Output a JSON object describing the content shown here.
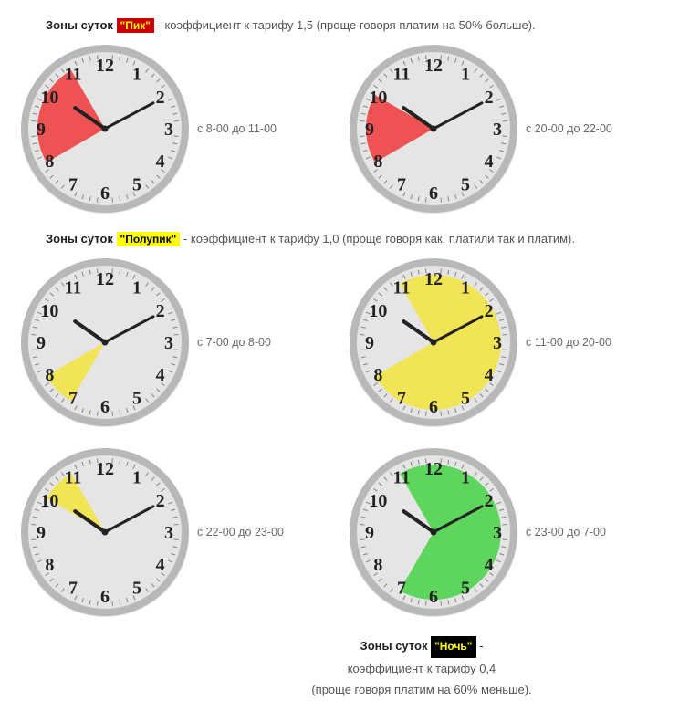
{
  "colors": {
    "clockFace": "#e5e5e5",
    "clockRim": "#b8b8b8",
    "tickText": "#222222",
    "hand": "#222222",
    "peak": "#ef4545",
    "half": "#f2e449",
    "night": "#52d552",
    "badgePeakBg": "#c80000",
    "badgePeakFg": "#ffff00",
    "badgeHalfBg": "#ffff00",
    "badgeHalfFg": "#000000",
    "badgeNightBg": "#000000",
    "badgeNightFg": "#ffff00"
  },
  "sections": {
    "peak": {
      "prefix": "Зоны суток ",
      "badge": "\"Пик\"",
      "rest": " - коэффициент к тарифу 1,5 (проще говоря платим на 50% больше)."
    },
    "half": {
      "prefix": "Зоны суток ",
      "badge": "\"Полупик\"",
      "rest": " - коэффициент к тарифу 1,0 (проще говоря как, платили так и платим)."
    },
    "night": {
      "line1_prefix": "Зоны суток ",
      "line1_badge": "\"Ночь\"",
      "line1_rest": " - ",
      "line2": "коэффициент к тарифу 0,4",
      "line3": "(проще говоря платим на 60% меньше)."
    }
  },
  "clocks": [
    {
      "id": "c1",
      "startHour": 8,
      "endHour": 11,
      "fill": "peak",
      "caption": "с 8-00 до 11-00"
    },
    {
      "id": "c2",
      "startHour": 8,
      "endHour": 10,
      "fill": "peak",
      "caption": "с 20-00 до 22-00"
    },
    {
      "id": "c3",
      "startHour": 7,
      "endHour": 8,
      "fill": "half",
      "caption": "с 7-00 до 8-00"
    },
    {
      "id": "c4",
      "startHour": 11,
      "endHour": 20,
      "fill": "half",
      "caption": "с 11-00 до 20-00"
    },
    {
      "id": "c5",
      "startHour": 10,
      "endHour": 11,
      "fill": "half",
      "caption": "с 22-00 до 23-00"
    },
    {
      "id": "c6",
      "startHour": 11,
      "endHour": 19,
      "fill": "night",
      "caption": "с 23-00 до 7-00"
    }
  ],
  "clockGeom": {
    "outerR": 92,
    "rimW": 8,
    "faceR": 84,
    "sectorR": 74,
    "numR": 70,
    "fontSize": 20
  }
}
